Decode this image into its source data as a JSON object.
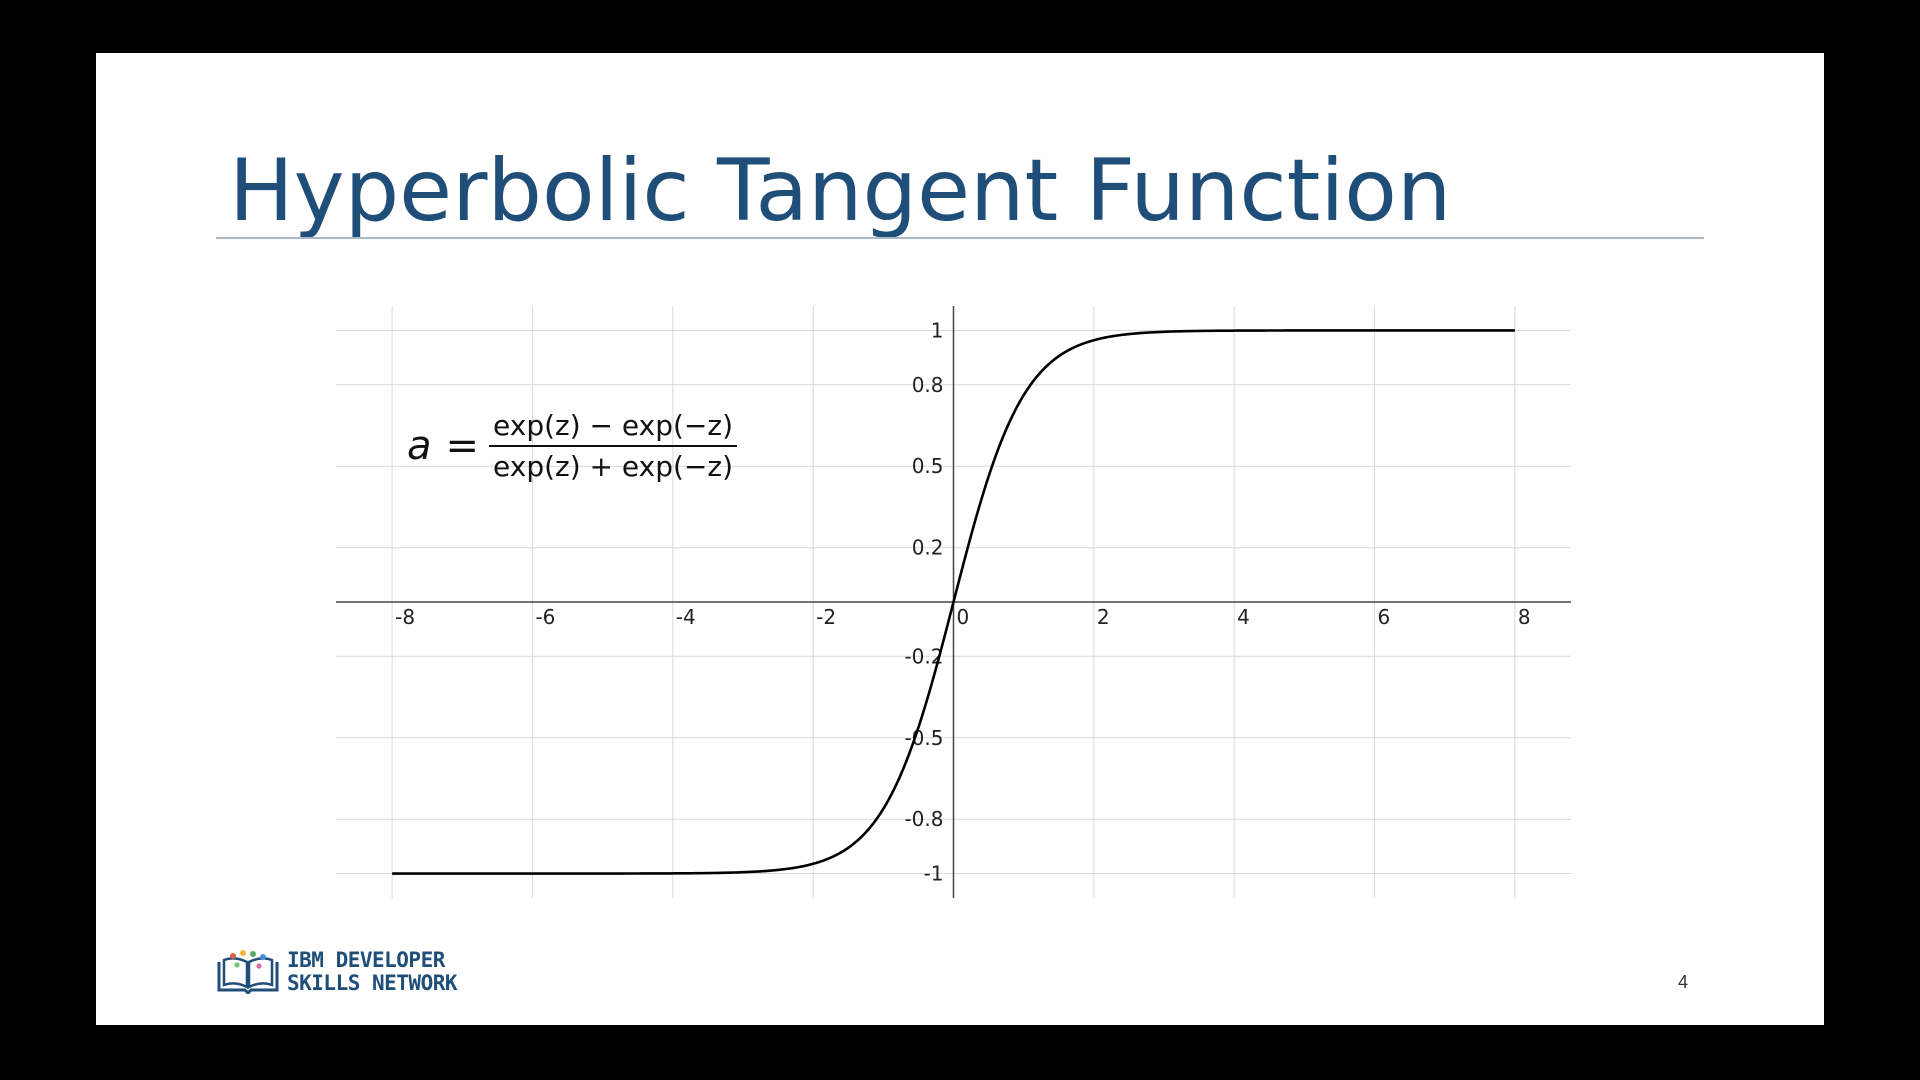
{
  "slide": {
    "title": "Hyperbolic Tangent Function",
    "page_number": "4",
    "title_color": "#1f4e79",
    "logo": {
      "line1": "IBM DEVELOPER",
      "line2": "SKILLS NETWORK",
      "icon": "book-network-icon"
    }
  },
  "formula": {
    "lhs": "a",
    "eq": "=",
    "numerator": "exp(z) − exp(−z)",
    "denominator": "exp(z) + exp(−z)"
  },
  "chart_data": {
    "type": "line",
    "function": "tanh",
    "series": [
      {
        "x_range": [
          -8,
          8
        ],
        "points": 400
      }
    ],
    "x_ticks": [
      -8,
      -6,
      -4,
      -2,
      0,
      2,
      4,
      6,
      8
    ],
    "x_tick_labels": [
      "-8",
      "-6",
      "-4",
      "-2",
      "0",
      "2",
      "4",
      "6",
      "8"
    ],
    "y_ticks": [
      1,
      0.8,
      0.5,
      0.2,
      -0.2,
      -0.5,
      -0.8,
      -1
    ],
    "y_tick_labels": [
      "1",
      "0.8",
      "0.5",
      "0.2",
      "-0.2",
      "-0.5",
      "-0.8",
      "-1"
    ],
    "xlim": [
      -8.8,
      8.8
    ],
    "ylim": [
      -1.09,
      1.09
    ],
    "grid": true,
    "line_color": "#000000"
  }
}
